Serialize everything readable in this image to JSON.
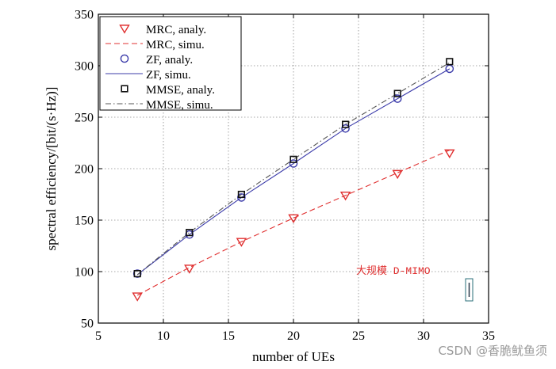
{
  "chart_data": {
    "type": "line",
    "title": "",
    "xlabel": "number of UEs",
    "ylabel": "spectral efficiency/[bit/(s·Hz)]",
    "xlim": [
      5,
      35
    ],
    "ylim": [
      50,
      350
    ],
    "xticks": [
      5,
      10,
      15,
      20,
      25,
      30,
      35
    ],
    "yticks": [
      50,
      100,
      150,
      200,
      250,
      300,
      350
    ],
    "grid": true,
    "legend_position": "top-left",
    "x": [
      8,
      12,
      16,
      20,
      24,
      28,
      32
    ],
    "series": [
      {
        "name": "MRC, analy.",
        "kind": "marker",
        "marker": "triangle-down",
        "color": "#e03030",
        "values": [
          76,
          103,
          129,
          152,
          174,
          195,
          215
        ]
      },
      {
        "name": "MRC, simu.",
        "kind": "line",
        "dash": "dashed",
        "color": "#e03030",
        "values": [
          77,
          104,
          129,
          152,
          174,
          196,
          218
        ]
      },
      {
        "name": "ZF, analy.",
        "kind": "marker",
        "marker": "circle",
        "color": "#3c3caa",
        "values": [
          98,
          136,
          172,
          205,
          239,
          268,
          297
        ]
      },
      {
        "name": "ZF, simu.",
        "kind": "line",
        "dash": "solid",
        "color": "#3c3caa",
        "values": [
          97,
          136,
          172,
          205,
          239,
          268,
          297
        ]
      },
      {
        "name": "MMSE, analy.",
        "kind": "marker",
        "marker": "square",
        "color": "#111111",
        "values": [
          98,
          138,
          175,
          209,
          243,
          273,
          304
        ]
      },
      {
        "name": "MMSE, simu.",
        "kind": "line",
        "dash": "dashdot",
        "color": "#555555",
        "values": [
          97,
          138,
          175,
          209,
          243,
          273,
          303
        ]
      }
    ],
    "annotations": [
      {
        "text": "大规模 D-MIMO",
        "color": "#e03030"
      }
    ]
  },
  "watermark": "CSDN @香脆鱿鱼须"
}
